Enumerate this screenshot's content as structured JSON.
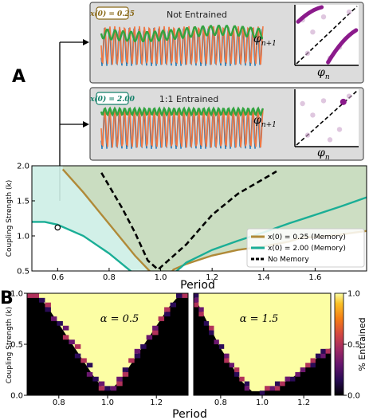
{
  "chart_data": [
    {
      "panel_label": "A",
      "type": "diagram",
      "insets": [
        {
          "badge": "x(0) = 0.25",
          "badge_color": "#8a6a1a",
          "title": "Not Entrained",
          "ylabel": "φn+1",
          "ylabel_main": "φ",
          "ylabel_sub": "n+1",
          "xlabel": "φn",
          "xlabel_main": "φ",
          "xlabel_sub": "n",
          "colors": {
            "blue": "#1f77b4",
            "orange": "#ee7744",
            "green": "#33a340",
            "map": "#8b1a8b"
          }
        },
        {
          "badge": "x(0) = 2.00",
          "badge_color": "#15806a",
          "title": "1:1 Entrained",
          "ylabel": "φn+1",
          "ylabel_main": "φ",
          "ylabel_sub": "n+1",
          "xlabel": "φn",
          "xlabel_main": "φ",
          "xlabel_sub": "n",
          "colors": {
            "blue": "#1f77b4",
            "orange": "#ee7744",
            "green": "#33a340",
            "map": "#8b1a8b"
          }
        }
      ]
    },
    {
      "type": "line",
      "xlabel": "Period",
      "ylabel": "Coupling Strength (k)",
      "xlim": [
        0.5,
        1.8
      ],
      "ylim": [
        0.5,
        2.0
      ],
      "xticks": [
        0.6,
        0.8,
        1.0,
        1.2,
        1.4,
        1.6
      ],
      "xtick_labels": [
        "0.6",
        "0.8",
        "1.0",
        "1.2",
        "1.4",
        "1.6"
      ],
      "yticks": [
        0.5,
        1.0,
        1.5,
        2.0
      ],
      "ytick_labels": [
        "0.5",
        "1.0",
        "1.5",
        "2.0"
      ],
      "marker_point": [
        0.6,
        1.12
      ],
      "legend_position": "lower-right",
      "series": [
        {
          "name": "x(0) = 0.25 (Memory)",
          "color": "#b08a38",
          "fill": "#f2dcc4",
          "style": "solid",
          "x": [
            0.62,
            0.7,
            0.8,
            0.9,
            0.97,
            1.0,
            1.05,
            1.1,
            1.2,
            1.3,
            1.4,
            1.5,
            1.55,
            1.6,
            1.7,
            1.8
          ],
          "y": [
            1.95,
            1.62,
            1.17,
            0.72,
            0.45,
            0.28,
            0.52,
            0.6,
            0.72,
            0.8,
            0.85,
            0.92,
            0.98,
            0.98,
            1.02,
            1.07
          ]
        },
        {
          "name": "x(0) = 2.00 (Memory)",
          "color": "#1aae96",
          "fill": "#cdeee6",
          "style": "solid",
          "x": [
            0.5,
            0.55,
            0.6,
            0.7,
            0.8,
            0.9,
            0.97,
            1.0,
            1.1,
            1.2,
            1.3,
            1.4,
            1.5,
            1.6,
            1.7,
            1.8
          ],
          "y": [
            1.2,
            1.2,
            1.16,
            1.0,
            0.75,
            0.45,
            0.3,
            0.3,
            0.62,
            0.8,
            0.93,
            1.05,
            1.18,
            1.3,
            1.42,
            1.55
          ]
        },
        {
          "name": "No Memory",
          "color": "#000000",
          "style": "dashed",
          "x": [
            0.77,
            0.85,
            0.9,
            0.95,
            0.99,
            1.03,
            1.1,
            1.2,
            1.3,
            1.45
          ],
          "y": [
            1.9,
            1.4,
            1.05,
            0.65,
            0.52,
            0.65,
            0.88,
            1.3,
            1.6,
            1.92
          ]
        }
      ]
    },
    {
      "panel_label": "B",
      "type": "heatmap",
      "title": "α = 0.5",
      "ylabel": "Coupling Strength (k)",
      "xlabel": "Period",
      "xlim": [
        0.67,
        1.33
      ],
      "ylim": [
        0.0,
        1.0
      ],
      "xtick_labels": [
        "0.8",
        "1.0",
        "1.2"
      ],
      "xticks": [
        0.8,
        1.0,
        1.2
      ],
      "ytick_labels": [
        "0.0",
        "0.5",
        "1.0"
      ],
      "yticks": [
        0.0,
        0.5,
        1.0
      ],
      "entrainment_boundary": {
        "left_x": [
          0.67,
          0.7,
          0.75,
          0.8,
          0.85,
          0.9,
          0.95,
          0.99
        ],
        "left_k": [
          1.0,
          1.0,
          0.88,
          0.7,
          0.52,
          0.34,
          0.16,
          0.05
        ],
        "right_x": [
          1.01,
          1.05,
          1.1,
          1.15,
          1.2,
          1.25,
          1.3,
          1.33
        ],
        "right_k": [
          0.05,
          0.14,
          0.32,
          0.5,
          0.68,
          0.86,
          1.0,
          1.0
        ]
      }
    },
    {
      "panel_label": "",
      "type": "heatmap",
      "title": "α = 1.5",
      "xlim": [
        0.67,
        1.33
      ],
      "ylim": [
        0.0,
        1.0
      ],
      "xtick_labels": [
        "0.8",
        "1.0",
        "1.2"
      ],
      "xticks": [
        0.8,
        1.0,
        1.2
      ],
      "entrainment_boundary": {
        "left_x": [
          0.67,
          0.7,
          0.75,
          0.8,
          0.85,
          0.9,
          0.95
        ],
        "left_k": [
          0.98,
          0.86,
          0.66,
          0.46,
          0.3,
          0.14,
          0.04
        ],
        "right_x": [
          1.0,
          1.05,
          1.1,
          1.15,
          1.2,
          1.25,
          1.3,
          1.33
        ],
        "right_k": [
          0.04,
          0.06,
          0.12,
          0.18,
          0.26,
          0.34,
          0.44,
          0.46
        ]
      },
      "colorbar": {
        "label": "% Entrained",
        "ticks": [
          0.0,
          0.5,
          1.0
        ],
        "tick_labels": [
          "0.0",
          "0.5",
          "1.0"
        ],
        "colormap": "inferno"
      }
    }
  ]
}
